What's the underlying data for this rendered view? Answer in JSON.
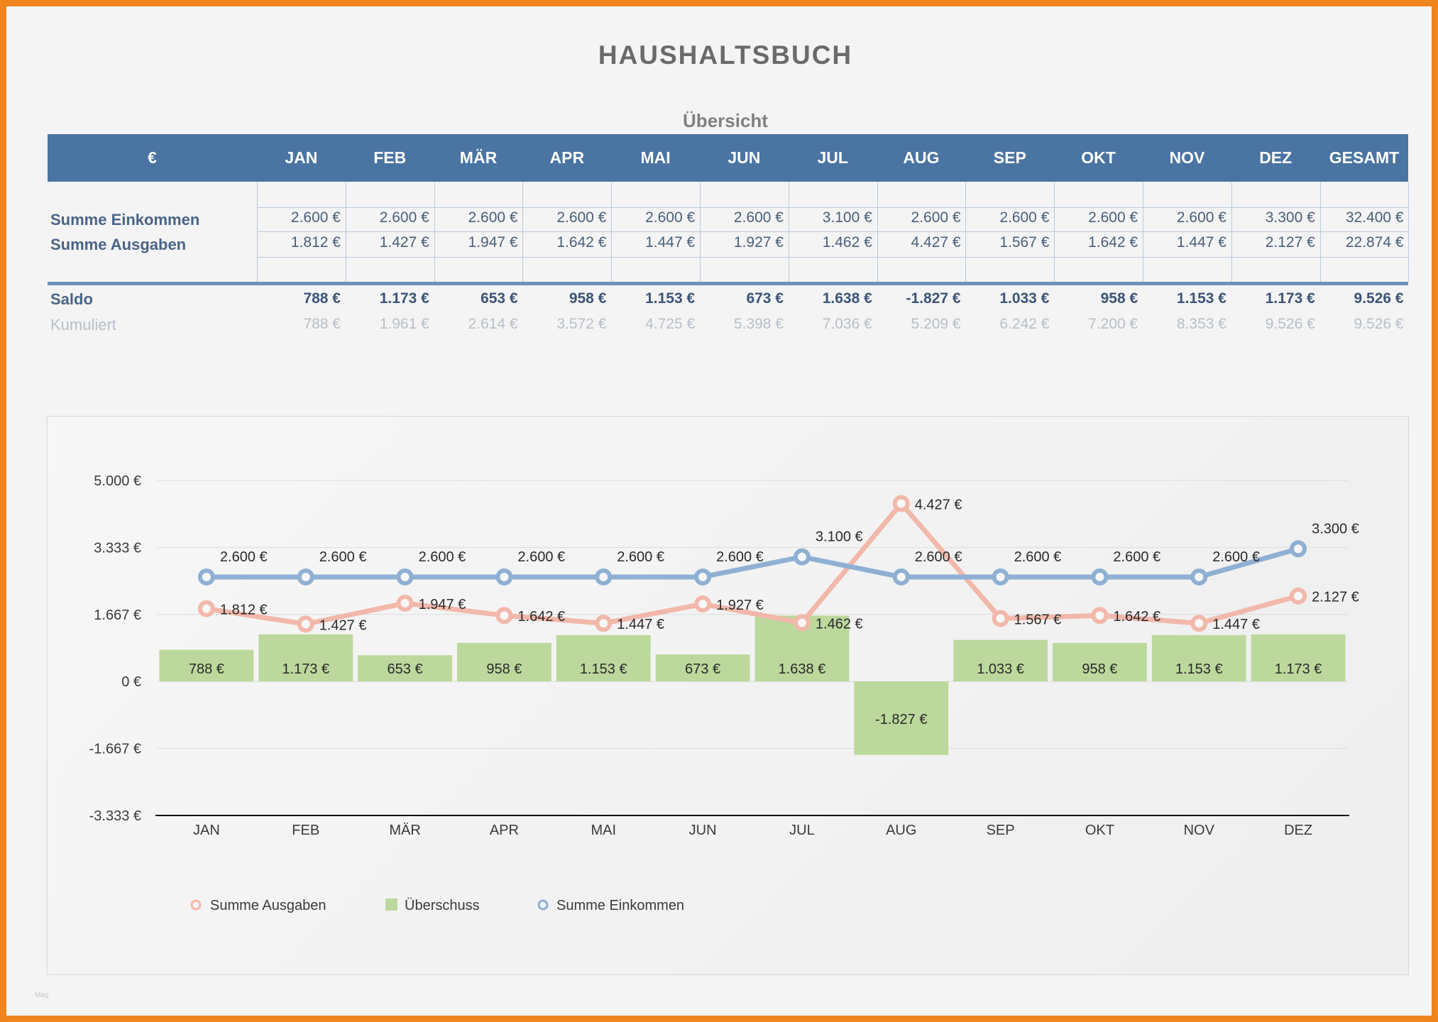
{
  "title": "HAUSHALTSBUCH",
  "subtitle": "Übersicht",
  "watermark": "Mag",
  "table": {
    "currency_header": "€",
    "months": [
      "JAN",
      "FEB",
      "MÄR",
      "APR",
      "MAI",
      "JUN",
      "JUL",
      "AUG",
      "SEP",
      "OKT",
      "NOV",
      "DEZ"
    ],
    "total_header": "GESAMT",
    "rows": {
      "income": {
        "label": "Summe Einkommen",
        "values": [
          "2.600 €",
          "2.600 €",
          "2.600 €",
          "2.600 €",
          "2.600 €",
          "2.600 €",
          "3.100 €",
          "2.600 €",
          "2.600 €",
          "2.600 €",
          "2.600 €",
          "3.300 €"
        ],
        "total": "32.400 €"
      },
      "expenses": {
        "label": "Summe Ausgaben",
        "values": [
          "1.812 €",
          "1.427 €",
          "1.947 €",
          "1.642 €",
          "1.447 €",
          "1.927 €",
          "1.462 €",
          "4.427 €",
          "1.567 €",
          "1.642 €",
          "1.447 €",
          "2.127 €"
        ],
        "total": "22.874 €"
      },
      "saldo": {
        "label": "Saldo",
        "values": [
          "788 €",
          "1.173 €",
          "653 €",
          "958 €",
          "1.153 €",
          "673 €",
          "1.638 €",
          "-1.827 €",
          "1.033 €",
          "958 €",
          "1.153 €",
          "1.173 €"
        ],
        "total": "9.526 €"
      },
      "cumulative": {
        "label": "Kumuliert",
        "values": [
          "788 €",
          "1.961 €",
          "2.614 €",
          "3.572 €",
          "4.725 €",
          "5.398 €",
          "7.036 €",
          "5.209 €",
          "6.242 €",
          "7.200 €",
          "8.353 €",
          "9.526 €"
        ],
        "total": "9.526 €"
      }
    }
  },
  "chart_data": {
    "type": "bar+line",
    "categories": [
      "JAN",
      "FEB",
      "MÄR",
      "APR",
      "MAI",
      "JUN",
      "JUL",
      "AUG",
      "SEP",
      "OKT",
      "NOV",
      "DEZ"
    ],
    "ylim": [
      -3333,
      5000
    ],
    "yticks": [
      5000,
      3333,
      1667,
      0,
      -1667,
      -3333
    ],
    "ytick_labels": [
      "5.000 €",
      "3.333 €",
      "1.667 €",
      "0 €",
      "-1.667 €",
      "-3.333 €"
    ],
    "series": [
      {
        "name": "Summe Ausgaben",
        "kind": "line",
        "color": "#f2b8aa",
        "values": [
          1812,
          1427,
          1947,
          1642,
          1447,
          1927,
          1462,
          4427,
          1567,
          1642,
          1447,
          2127
        ],
        "labels": [
          "1.812 €",
          "1.427 €",
          "1.947 €",
          "1.642 €",
          "1.447 €",
          "1.927 €",
          "1.462 €",
          "4.427 €",
          "1.567 €",
          "1.642 €",
          "1.447 €",
          "2.127 €"
        ]
      },
      {
        "name": "Überschuss",
        "kind": "bar",
        "color": "#bcd89c",
        "values": [
          788,
          1173,
          653,
          958,
          1153,
          673,
          1638,
          -1827,
          1033,
          958,
          1153,
          1173
        ],
        "labels": [
          "788 €",
          "1.173 €",
          "653 €",
          "958 €",
          "1.153 €",
          "673 €",
          "1.638 €",
          "-1.827 €",
          "1.033 €",
          "958 €",
          "1.153 €",
          "1.173 €"
        ]
      },
      {
        "name": "Summe Einkommen",
        "kind": "line",
        "color": "#8fb0d3",
        "values": [
          2600,
          2600,
          2600,
          2600,
          2600,
          2600,
          3100,
          2600,
          2600,
          2600,
          2600,
          3300
        ],
        "labels": [
          "2.600 €",
          "2.600 €",
          "2.600 €",
          "2.600 €",
          "2.600 €",
          "2.600 €",
          "3.100 €",
          "2.600 €",
          "2.600 €",
          "2.600 €",
          "2.600 €",
          "3.300 €"
        ]
      }
    ],
    "legend": [
      "Summe Ausgaben",
      "Überschuss",
      "Summe Einkommen"
    ],
    "legend_position": "bottom-left"
  }
}
